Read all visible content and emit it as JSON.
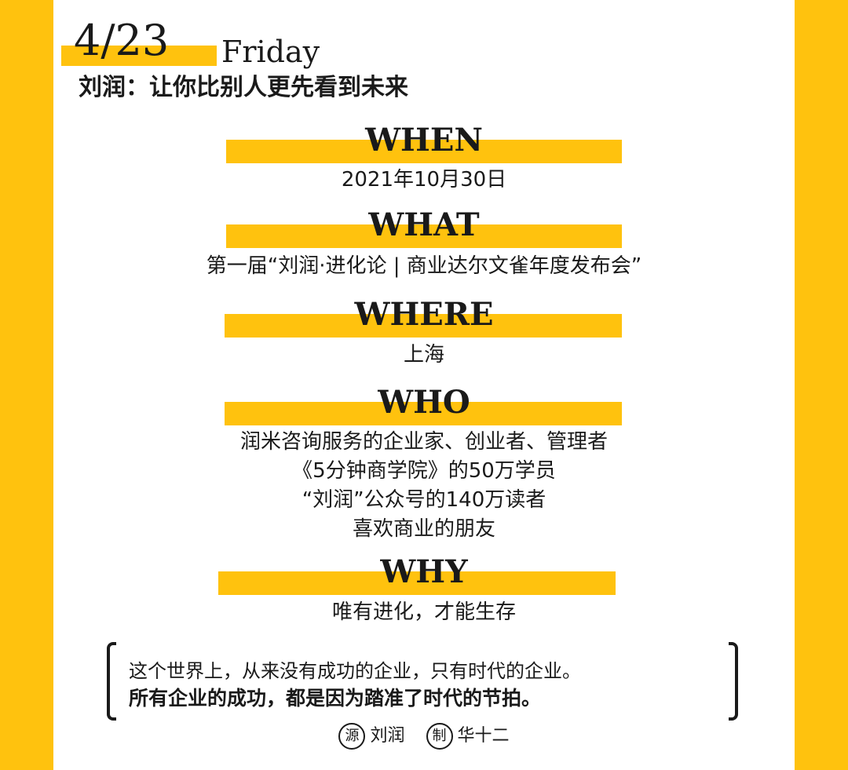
{
  "header": {
    "date": "4/23",
    "weekday": "Friday",
    "headline": "刘润：让你比别人更先看到未来"
  },
  "sections": {
    "when": {
      "title": "WHEN",
      "lines": [
        "2021年10月30日"
      ]
    },
    "what": {
      "title": "WHAT",
      "lines": [
        "第一届“刘润·进化论 | 商业达尔文雀年度发布会”"
      ]
    },
    "where": {
      "title": "WHERE",
      "lines": [
        "上海"
      ]
    },
    "who": {
      "title": "WHO",
      "lines": [
        "润米咨询服务的企业家、创业者、管理者",
        "《5分钟商学院》的50万学员",
        "“刘润”公众号的140万读者",
        "喜欢商业的朋友"
      ]
    },
    "why": {
      "title": "WHY",
      "lines": [
        "唯有进化，才能生存"
      ]
    }
  },
  "quote": {
    "line1": "这个世界上，从来没有成功的企业，只有时代的企业。",
    "line2": "所有企业的成功，都是因为踏准了时代的节拍。"
  },
  "credits": {
    "source_badge": "源",
    "source_name": "刘润",
    "maker_badge": "制",
    "maker_name": "华十二"
  },
  "colors": {
    "accent": "#FFC20E",
    "text": "#1a1a1a",
    "card": "#ffffff"
  }
}
